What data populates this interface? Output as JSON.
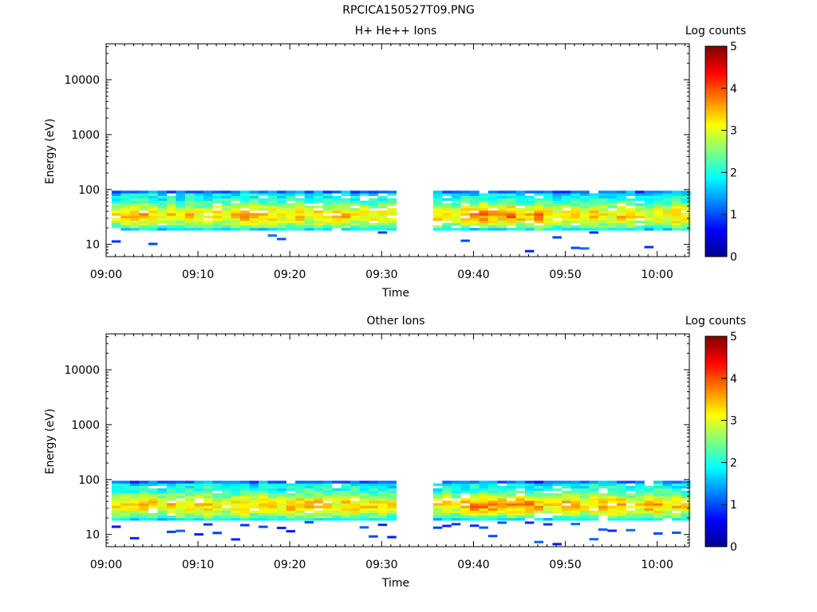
{
  "figure_title": "RPCICA150527T09.PNG",
  "chart_data": [
    {
      "type": "heatmap",
      "title": "H+ He++ Ions",
      "xlabel": "Time",
      "ylabel": "Energy (eV)",
      "x_ticks": [
        "09:00",
        "09:10",
        "09:20",
        "09:30",
        "09:40",
        "09:50",
        "10:00"
      ],
      "y_ticks": [
        "10",
        "100",
        "1000",
        "10000"
      ],
      "y_scale": "log",
      "ylim": [
        6,
        45000
      ],
      "xlim_minutes": [
        0,
        63.5
      ],
      "colorbar_label": "Log counts",
      "colorbar_ticks": [
        "0",
        "1",
        "2",
        "3",
        "4",
        "5"
      ],
      "zlim": [
        0,
        5
      ],
      "data_gap_minutes": [
        31.5,
        35
      ],
      "energy_band_eV": [
        18,
        95
      ],
      "peak_log_counts": 4.3,
      "sparse_low_energy": false
    },
    {
      "type": "heatmap",
      "title": "Other Ions",
      "xlabel": "Time",
      "ylabel": "Energy (eV)",
      "x_ticks": [
        "09:00",
        "09:10",
        "09:20",
        "09:30",
        "09:40",
        "09:50",
        "10:00"
      ],
      "y_ticks": [
        "10",
        "100",
        "1000",
        "10000"
      ],
      "y_scale": "log",
      "ylim": [
        6,
        45000
      ],
      "xlim_minutes": [
        0,
        63.5
      ],
      "colorbar_label": "Log counts",
      "colorbar_ticks": [
        "0",
        "1",
        "2",
        "3",
        "4",
        "5"
      ],
      "zlim": [
        0,
        5
      ],
      "data_gap_minutes": [
        31.5,
        35
      ],
      "energy_band_eV": [
        18,
        95
      ],
      "peak_log_counts": 4.0,
      "sparse_low_energy": true
    }
  ]
}
